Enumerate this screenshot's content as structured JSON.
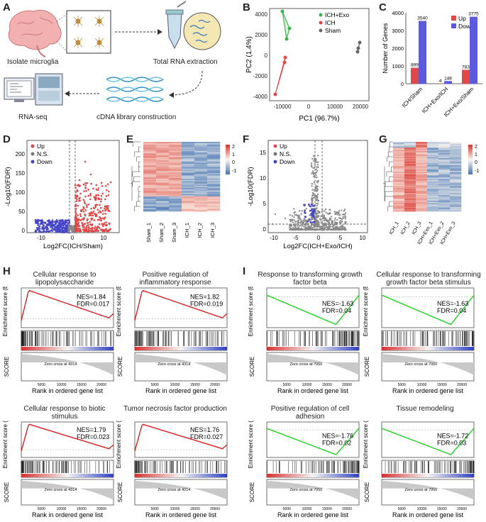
{
  "panel_letters": {
    "a": "A",
    "b": "B",
    "c": "C",
    "d": "D",
    "e": "E",
    "f": "F",
    "g": "G",
    "h": "H",
    "i": "I"
  },
  "panelA": {
    "isolate": "Isolate microglia",
    "rna": "Total RNA extraction",
    "cdna": "cDNA library construction",
    "seq": "RNA-seq"
  },
  "panelB": {
    "xlabel": "PC1 (96.7%)",
    "ylabel": "PC2 (1.4%)",
    "legend": [
      "ICH+Exo",
      "ICH",
      "Sham"
    ],
    "colors": {
      "exo": "#3db34a",
      "ich": "#e04848",
      "sham": "#666666"
    },
    "xticks": [
      "-10000",
      "0",
      "10000",
      "20000"
    ],
    "yticks": [
      "4000",
      "2000",
      "0",
      "-2000",
      "-4000"
    ]
  },
  "chart_data": {
    "type": "bar",
    "title": "",
    "ylabel": "Number of Genes",
    "ylim": [
      0,
      4000
    ],
    "yticks": [
      "0",
      "1000",
      "2000",
      "3000",
      "4000"
    ],
    "categories": [
      "ICH/Sham",
      "ICH+Exo/ICH",
      "ICH+Exo/Sham"
    ],
    "legend": [
      "Up",
      "Down"
    ],
    "colors": {
      "up": "#e04848",
      "down": "#5b5bdc"
    },
    "series": [
      {
        "name": "Up",
        "values": [
          899,
          4,
          783
        ],
        "labels": [
          "899",
          "4",
          "783"
        ]
      },
      {
        "name": "Down",
        "values": [
          3540,
          148,
          3775
        ],
        "labels": [
          "3540",
          "148",
          "3775"
        ]
      }
    ]
  },
  "panelD": {
    "xlabel": "Log2FC(ICH/Sham)",
    "ylabel": "-Log10(FDR)",
    "legend": [
      "Up",
      "N.S.",
      "Down"
    ],
    "xticks": [
      "-10",
      "0",
      "10"
    ],
    "yticks": [
      "0",
      "50",
      "100",
      "150",
      "200"
    ]
  },
  "panelE": {
    "columns": [
      "Sham_1",
      "Sham_2",
      "Sham_3",
      "ICH_1",
      "ICH_2",
      "ICH_3"
    ],
    "scale": [
      "2",
      "1",
      "0",
      "-1"
    ]
  },
  "panelF": {
    "xlabel": "Log2FC(ICH+Exo/ICH)",
    "ylabel": "-Log10(FDR)",
    "legend": [
      "Up",
      "N.S.",
      "Down"
    ],
    "xticks": [
      "-10",
      "-5",
      "0",
      "5",
      "10"
    ],
    "yticks": [
      "0",
      "5",
      "10",
      "15"
    ]
  },
  "panelG": {
    "columns": [
      "ICH_1",
      "ICH_2",
      "ICH_3",
      "ICH+Exo_1",
      "ICH+Exo_2",
      "ICH+Exo_3"
    ],
    "scale": [
      "2",
      "1",
      "0",
      "-1"
    ]
  },
  "gsea": {
    "es_label": "Enrichment score (ES)",
    "score_label": "SCORE",
    "xlabel": "Rank in ordered gene list",
    "xticks": [
      "5000",
      "10000",
      "15000",
      "20000"
    ],
    "plots": [
      {
        "title": "Cellular response to lipopolysaccharide",
        "nes": "NES=1.84",
        "fdr": "FDR=0.017",
        "zero": "Zero cross at 4314"
      },
      {
        "title": "Positive regulation of inflammatory response",
        "nes": "NES=1.82",
        "fdr": "FDR=0.019",
        "zero": "Zero cross at 4314"
      },
      {
        "title": "Cellular response to biotic stimulus",
        "nes": "NES=1.79",
        "fdr": "FDR=0.023",
        "zero": "Zero cross at 4314"
      },
      {
        "title": "Tumor necrosis factor production",
        "nes": "NES=1.76",
        "fdr": "FDR=0.027",
        "zero": "Zero cross at 4314"
      },
      {
        "title": "Response to transforming growth factor beta",
        "nes": "NES=-1.63",
        "fdr": "FDR=0.04",
        "zero": "Zero cross at 7950"
      },
      {
        "title": "Cellular response to transforming growth factor beta stimulus",
        "nes": "NES=-1.63",
        "fdr": "FDR=0.04",
        "zero": "Zero cross at 7950"
      },
      {
        "title": "Positive regulation of cell adhesion",
        "nes": "NES=-1.76",
        "fdr": "FDR=0.02",
        "zero": "Zero cross at 7950"
      },
      {
        "title": "Tissue remodeling",
        "nes": "NES=-1.72",
        "fdr": "FDR=0.03",
        "zero": "Zero cross at 7950"
      }
    ]
  }
}
